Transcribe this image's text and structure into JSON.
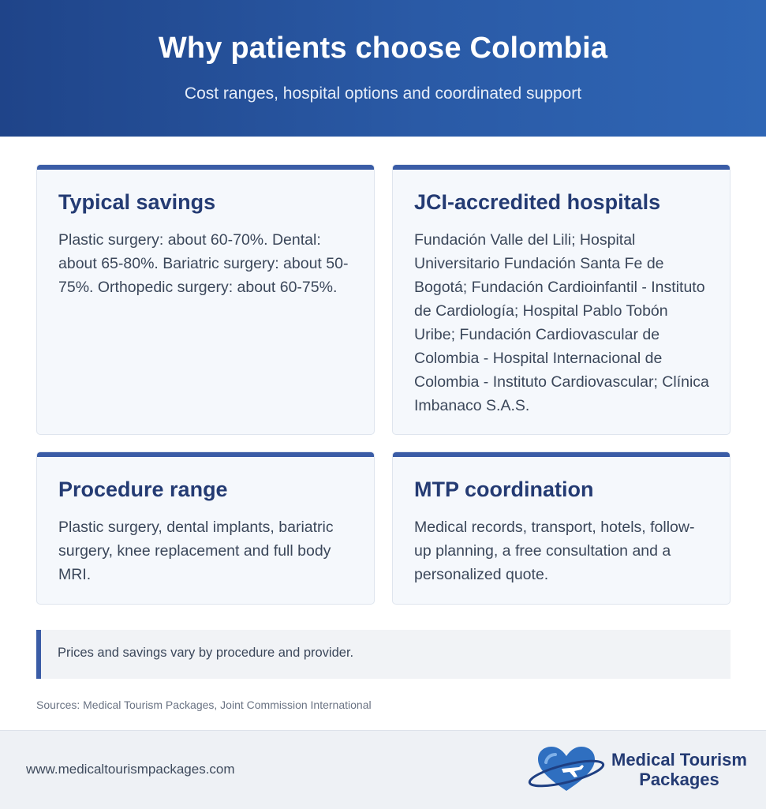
{
  "header": {
    "title": "Why patients choose Colombia",
    "subtitle": "Cost ranges, hospital options and coordinated support"
  },
  "cards": [
    {
      "title": "Typical savings",
      "body": "Plastic surgery: about 60-70%. Dental: about 65-80%. Bariatric surgery: about 50-75%. Orthopedic surgery: about 60-75%."
    },
    {
      "title": "JCI-accredited hospitals",
      "body": "Fundación Valle del Lili; Hospital Universitario Fundación Santa Fe de Bogotá; Fundación Cardioinfantil - Instituto de Cardiología; Hospital Pablo Tobón Uribe; Fundación Cardiovascular de Colombia - Hospital Internacional de Colombia - Instituto Cardiovascular; Clínica Imbanaco S.A.S."
    },
    {
      "title": "Procedure range",
      "body": "Plastic surgery, dental implants, bariatric surgery, knee replacement and full body MRI."
    },
    {
      "title": "MTP coordination",
      "body": "Medical records, transport, hotels, follow-up planning, a free consultation and a personalized quote."
    }
  ],
  "note": "Prices and savings vary by procedure and provider.",
  "sources": "Sources: Medical Tourism Packages, Joint Commission International",
  "footer": {
    "url": "www.medicaltourismpackages.com",
    "logo_line1": "Medical Tourism",
    "logo_line2": "Packages",
    "logo_icon": "heart-plane-icon"
  },
  "colors": {
    "header_start": "#1f4489",
    "header_end": "#2f66b5",
    "accent": "#3a5ca6",
    "heading": "#243b73",
    "heart": "#2f6fc0"
  }
}
